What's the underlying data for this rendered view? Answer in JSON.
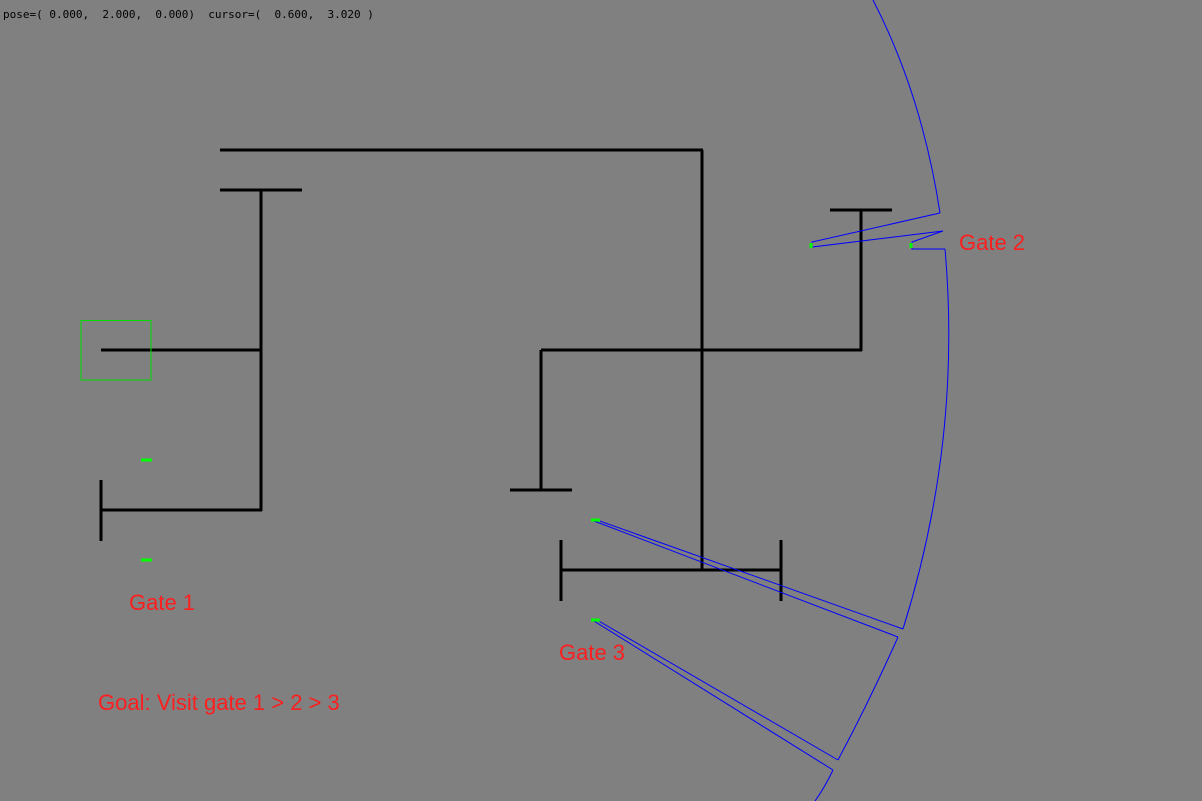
{
  "status": {
    "text": "pose=( 0.000,  2.000,  0.000)  cursor=(  0.600,  3.020 )"
  },
  "labels": {
    "gate1": "Gate 1",
    "gate2": "Gate 2",
    "gate3": "Gate 3",
    "goal": "Goal: Visit gate 1 > 2 > 3"
  },
  "colors": {
    "background": "#808080",
    "walls": "#000000",
    "gate_markers": "#00ff00",
    "sensor_scan": "#0000ff",
    "robot_box": "#00dd00",
    "label_text": "#ff1e1e"
  },
  "robot": {
    "pose": {
      "x": 0.0,
      "y": 2.0,
      "theta": 0.0
    },
    "cursor": {
      "x": 0.6,
      "y": 3.02
    }
  }
}
